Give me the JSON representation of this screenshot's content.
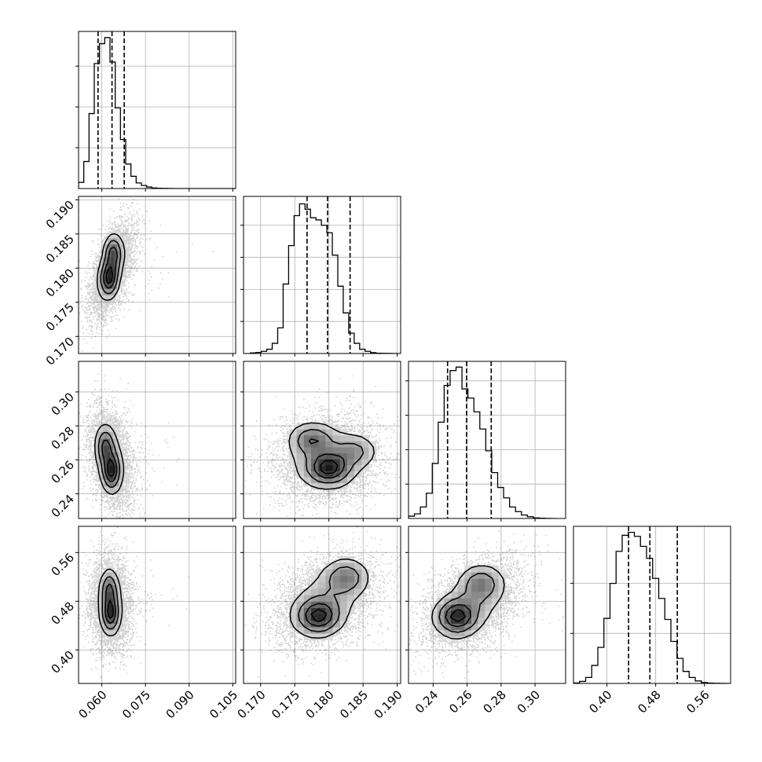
{
  "chart_data": {
    "type": "corner",
    "title": "",
    "parameters": [
      {
        "range": [
          0.052,
          0.106
        ],
        "ticks": [
          0.06,
          0.075,
          0.09,
          0.105
        ],
        "tick_labels": [
          "0.060",
          "0.075",
          "0.090",
          "0.105"
        ],
        "quantiles": [
          0.0587,
          0.0635,
          0.0677
        ],
        "hist_edges": [
          0.052,
          0.0538,
          0.0556,
          0.0574,
          0.0592,
          0.061,
          0.0628,
          0.0646,
          0.0664,
          0.0682,
          0.07,
          0.0718,
          0.0736,
          0.0754,
          0.0772,
          0.079,
          0.0808,
          0.0826,
          0.0844,
          0.0862,
          0.088,
          0.0898,
          0.0916,
          0.0934,
          0.0952,
          0.097,
          0.0988,
          0.1006,
          0.1024,
          0.1042,
          0.106
        ],
        "hist_counts": [
          60,
          265,
          735,
          1225,
          1420,
          1480,
          1240,
          790,
          480,
          240,
          120,
          55,
          30,
          15,
          6,
          3,
          2,
          1,
          0,
          0,
          0,
          0,
          0,
          0,
          0,
          0,
          0,
          0,
          0,
          0
        ],
        "hist_ylim": [
          0,
          1540
        ],
        "hist_yticks": [
          400,
          800,
          1200
        ]
      },
      {
        "range": [
          0.1675,
          0.1905
        ],
        "ticks": [
          0.17,
          0.175,
          0.18,
          0.185,
          0.19
        ],
        "tick_labels": [
          "0.170",
          "0.175",
          "0.180",
          "0.185",
          "0.190"
        ],
        "quantiles": [
          0.1768,
          0.1798,
          0.1831
        ],
        "hist_edges": [
          0.1685,
          0.1693,
          0.1701,
          0.1709,
          0.1717,
          0.1725,
          0.1733,
          0.1741,
          0.1749,
          0.1757,
          0.1765,
          0.1773,
          0.1781,
          0.1789,
          0.1797,
          0.1805,
          0.1813,
          0.1821,
          0.1829,
          0.1837,
          0.1845,
          0.1853,
          0.1861,
          0.1869,
          0.1877,
          0.1885,
          0.1893,
          0.1901
        ],
        "hist_counts": [
          5,
          10,
          20,
          40,
          95,
          240,
          650,
          1010,
          1290,
          1400,
          1350,
          1270,
          1250,
          1200,
          1130,
          920,
          630,
          380,
          190,
          95,
          40,
          20,
          8,
          3,
          2,
          1,
          0
        ],
        "hist_ylim": [
          0,
          1470
        ],
        "hist_yticks": [
          300,
          600,
          900,
          1200
        ]
      },
      {
        "range": [
          0.2255,
          0.318
        ],
        "ticks": [
          0.24,
          0.26,
          0.28,
          0.3
        ],
        "tick_labels": [
          "0.24",
          "0.26",
          "0.28",
          "0.30"
        ],
        "quantiles": [
          0.2485,
          0.2597,
          0.2742
        ],
        "hist_edges": [
          0.2255,
          0.229,
          0.2325,
          0.236,
          0.2395,
          0.243,
          0.2465,
          0.25,
          0.2535,
          0.257,
          0.2605,
          0.264,
          0.2675,
          0.271,
          0.2745,
          0.278,
          0.2815,
          0.285,
          0.2885,
          0.292,
          0.2955,
          0.299,
          0.3025,
          0.306,
          0.3095,
          0.313,
          0.318
        ],
        "hist_counts": [
          20,
          40,
          100,
          220,
          480,
          840,
          1160,
          1290,
          1320,
          1130,
          1050,
          930,
          780,
          590,
          400,
          270,
          180,
          100,
          60,
          30,
          15,
          5,
          2,
          1,
          0
        ],
        "hist_ylim": [
          0,
          1370
        ],
        "hist_yticks": [
          300,
          600,
          900,
          1200
        ]
      },
      {
        "range": [
          0.345,
          0.603
        ],
        "ticks": [
          0.4,
          0.48,
          0.56
        ],
        "tick_labels": [
          "0.40",
          "0.48",
          "0.56"
        ],
        "quantiles": [
          0.4355,
          0.4705,
          0.5155
        ],
        "hist_edges": [
          0.345,
          0.355,
          0.365,
          0.375,
          0.385,
          0.395,
          0.405,
          0.415,
          0.425,
          0.435,
          0.445,
          0.455,
          0.465,
          0.475,
          0.485,
          0.495,
          0.505,
          0.515,
          0.525,
          0.535,
          0.545,
          0.555,
          0.565,
          0.575,
          0.585,
          0.595,
          0.603
        ],
        "hist_counts": [
          5,
          20,
          60,
          180,
          360,
          650,
          1000,
          1320,
          1480,
          1510,
          1470,
          1370,
          1250,
          1050,
          850,
          640,
          420,
          250,
          120,
          60,
          25,
          10,
          4,
          2,
          1,
          0
        ],
        "hist_ylim": [
          0,
          1570
        ],
        "hist_yticks": [
          500,
          1000
        ]
      }
    ],
    "panels": [
      {
        "row": 1,
        "col": 0,
        "x_mean": 0.0632,
        "y_mean": 0.1798,
        "x_sd": 0.0032,
        "y_sd": 0.0029,
        "rho": 0.55,
        "peaks": [
          [
            0.0625,
            0.1785,
            1.0
          ],
          [
            0.0638,
            0.1822,
            0.8
          ]
        ]
      },
      {
        "row": 2,
        "col": 0,
        "x_mean": 0.0628,
        "y_mean": 0.2605,
        "x_sd": 0.0032,
        "y_sd": 0.0125,
        "rho": -0.3,
        "peaks": [
          [
            0.0632,
            0.2535,
            1.0
          ],
          [
            0.0612,
            0.268,
            0.7
          ]
        ]
      },
      {
        "row": 2,
        "col": 1,
        "x_mean": 0.1795,
        "y_mean": 0.2605,
        "x_sd": 0.0033,
        "y_sd": 0.011,
        "rho": 0.05,
        "peaks": [
          [
            0.18,
            0.255,
            1.0
          ],
          [
            0.1775,
            0.272,
            0.65
          ],
          [
            0.1838,
            0.265,
            0.45
          ]
        ]
      },
      {
        "row": 3,
        "col": 0,
        "x_mean": 0.0628,
        "y_mean": 0.475,
        "x_sd": 0.003,
        "y_sd": 0.033,
        "rho": -0.05,
        "peaks": [
          [
            0.063,
            0.46,
            1.0
          ],
          [
            0.0626,
            0.5,
            0.7
          ]
        ]
      },
      {
        "row": 3,
        "col": 1,
        "x_mean": 0.1795,
        "y_mean": 0.48,
        "x_sd": 0.0033,
        "y_sd": 0.033,
        "rho": 0.35,
        "peaks": [
          [
            0.1785,
            0.455,
            1.0
          ],
          [
            0.1825,
            0.52,
            0.6
          ]
        ]
      },
      {
        "row": 3,
        "col": 2,
        "x_mean": 0.2625,
        "y_mean": 0.475,
        "x_sd": 0.0125,
        "y_sd": 0.033,
        "rho": 0.45,
        "peaks": [
          [
            0.254,
            0.455,
            1.0
          ],
          [
            0.268,
            0.51,
            0.55
          ]
        ]
      }
    ],
    "grid": true,
    "legend": "none"
  }
}
